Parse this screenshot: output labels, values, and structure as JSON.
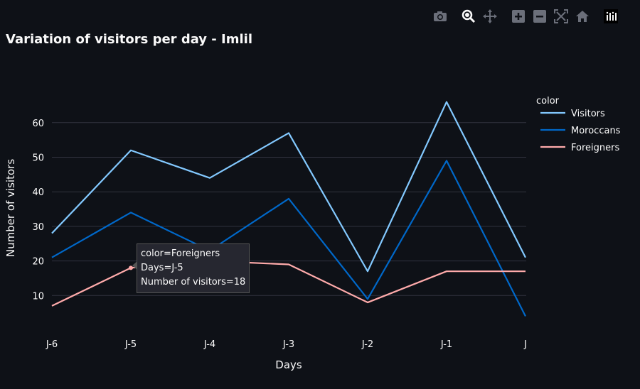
{
  "page": {
    "title": "Variation of visitors per day - Imlil"
  },
  "modebar": [
    {
      "name": "camera-icon",
      "label": "Download plot as a png"
    },
    {
      "name": "zoom-icon",
      "label": "Zoom"
    },
    {
      "name": "pan-icon",
      "label": "Pan"
    },
    {
      "name": "zoom-in-icon",
      "label": "Zoom in"
    },
    {
      "name": "zoom-out-icon",
      "label": "Zoom out"
    },
    {
      "name": "autoscale-icon",
      "label": "Autoscale"
    },
    {
      "name": "home-icon",
      "label": "Reset axes"
    },
    {
      "name": "plotly-logo-icon",
      "label": "Produced with Plotly"
    }
  ],
  "tooltip": {
    "line1": "color=Foreigners",
    "line2": "Days=J-5",
    "line3": "Number of visitors=18"
  },
  "chart_data": {
    "type": "line",
    "title": "Variation of visitors per day - Imlil",
    "xlabel": "Days",
    "ylabel": "Number of visitors",
    "categories": [
      "J-6",
      "J-5",
      "J-4",
      "J-3",
      "J-2",
      "J-1",
      "J"
    ],
    "yticks": [
      10,
      20,
      30,
      40,
      50,
      60
    ],
    "grid": true,
    "legend": {
      "title": "color",
      "position": "top-right"
    },
    "series": [
      {
        "name": "Visitors",
        "color": "#83c9ff",
        "values": [
          28,
          52,
          44,
          57,
          17,
          66,
          21
        ]
      },
      {
        "name": "Moroccans",
        "color": "#0068c9",
        "values": [
          21,
          34,
          23,
          38,
          9,
          49,
          4
        ]
      },
      {
        "name": "Foreigners",
        "color": "#ffabab",
        "values": [
          7,
          18,
          20,
          19,
          8,
          17,
          17
        ]
      }
    ]
  }
}
